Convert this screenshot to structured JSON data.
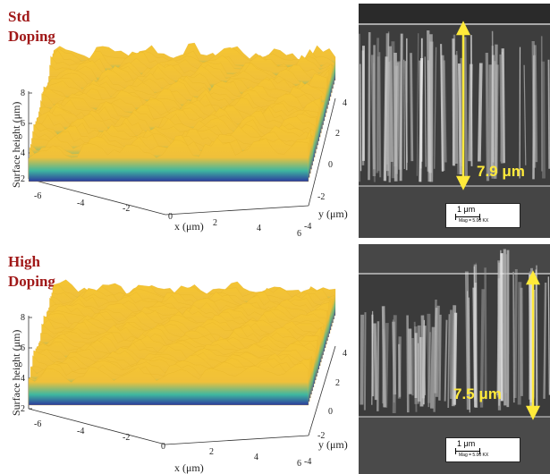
{
  "panels": [
    {
      "label_line1": "Std",
      "label_line2": "Doping",
      "z_axis_label": "Surface height (μm)",
      "x_axis_label": "x (μm)",
      "y_axis_label": "y (μm)",
      "z_ticks": [
        "2",
        "4",
        "6",
        "8"
      ],
      "x_ticks": [
        "-6",
        "-4",
        "-2",
        "0",
        "2",
        "4",
        "6"
      ],
      "y_ticks": [
        "-4",
        "-2",
        "0",
        "2",
        "4"
      ],
      "sem_measurement": "7.9 μm",
      "scale_bar_label": "1 μm",
      "scale_bar_mag": "Mag = 5.00 KX"
    },
    {
      "label_line1": "High",
      "label_line2": "Doping",
      "z_axis_label": "Surface height (μm)",
      "x_axis_label": "x (μm)",
      "y_axis_label": "y (μm)",
      "z_ticks": [
        "2",
        "4",
        "6",
        "8"
      ],
      "x_ticks": [
        "-6",
        "-4",
        "-2",
        "0",
        "2",
        "4",
        "6"
      ],
      "y_ticks": [
        "-4",
        "-2",
        "0",
        "2",
        "4"
      ],
      "sem_measurement": "7.5 μm",
      "scale_bar_label": "1 μm",
      "scale_bar_mag": "Mag = 5.00 KX"
    }
  ],
  "colors": {
    "label_red": "#a01818",
    "surface_high": "#f5c531",
    "surface_mid": "#3fb7a0",
    "surface_low": "#2c3a9c",
    "measurement_yellow": "#ffea3a"
  }
}
